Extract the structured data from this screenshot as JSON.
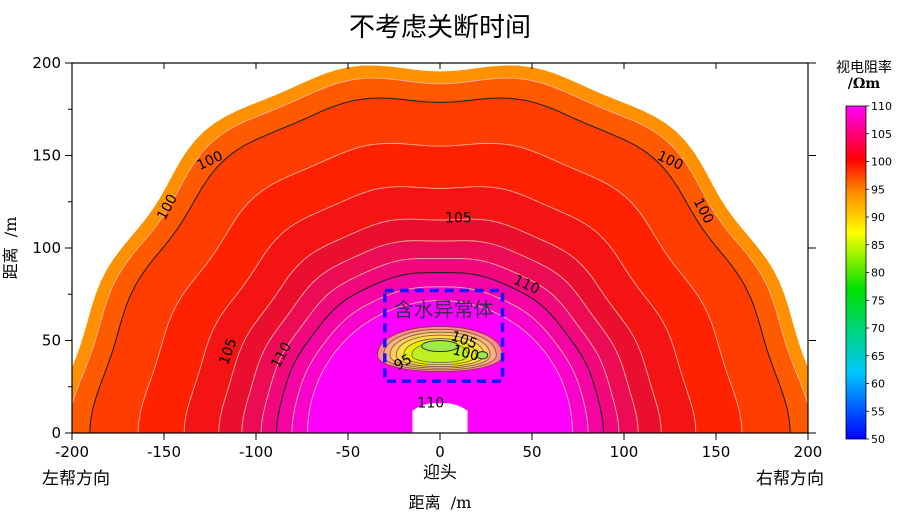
{
  "chart_data": {
    "type": "heatmap",
    "title": "不考虑关断时间",
    "xlabel": "距离  /m",
    "ylabel": "距离  /m",
    "xlim": [
      -200,
      200
    ],
    "ylim": [
      0,
      200
    ],
    "xticks": [
      -200,
      -150,
      -100,
      -50,
      0,
      50,
      100,
      150,
      200
    ],
    "yticks": [
      0,
      50,
      100,
      150,
      200
    ],
    "direction_labels": {
      "left": "左帮方向",
      "center": "迎头",
      "right": "右帮方向"
    },
    "anomaly_label": "含水异常体",
    "anomaly_box": {
      "x": [
        -30,
        34
      ],
      "y": [
        28,
        77
      ]
    },
    "colorbar": {
      "title_line1": "视电阻率",
      "title_line2": "/Ωm",
      "range": [
        50,
        110
      ],
      "ticks": [
        110,
        105,
        100,
        95,
        90,
        85,
        80,
        75,
        70,
        65,
        60,
        55,
        50
      ]
    },
    "contour_labels": [
      {
        "text": "100",
        "x": -125,
        "y": 147,
        "rot": -25
      },
      {
        "text": "100",
        "x": -148,
        "y": 122,
        "rot": -62
      },
      {
        "text": "100",
        "x": 125,
        "y": 147,
        "rot": 25
      },
      {
        "text": "100",
        "x": 143,
        "y": 120,
        "rot": 62
      },
      {
        "text": "105",
        "x": 10,
        "y": 116,
        "rot": 0
      },
      {
        "text": "105",
        "x": -115,
        "y": 44,
        "rot": -70
      },
      {
        "text": "110",
        "x": 47,
        "y": 80,
        "rot": 25
      },
      {
        "text": "110",
        "x": -86,
        "y": 42,
        "rot": -62
      },
      {
        "text": "110",
        "x": -5,
        "y": 16,
        "rot": 0
      },
      {
        "text": "105",
        "x": 13,
        "y": 50,
        "rot": 20
      },
      {
        "text": "100",
        "x": 14,
        "y": 43,
        "rot": 15
      },
      {
        "text": "95",
        "x": -20,
        "y": 38,
        "rot": -30
      }
    ]
  }
}
